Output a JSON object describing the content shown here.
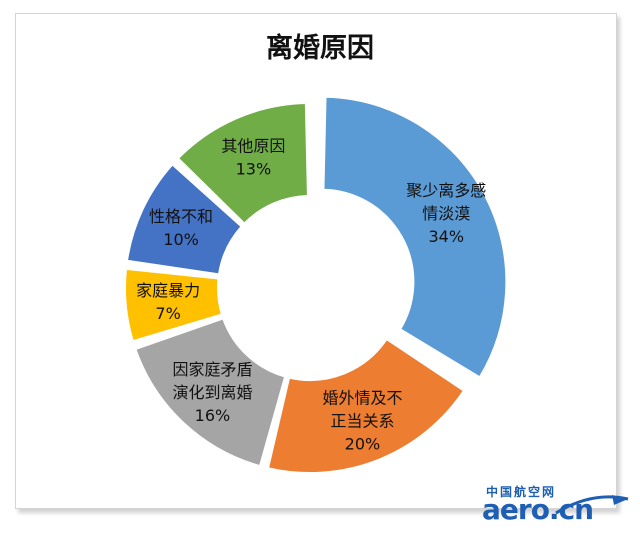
{
  "chart_data": {
    "type": "pie",
    "title": "离婚原因",
    "hole": true,
    "slices": [
      {
        "name": "聚少离多感情淡漠",
        "lines": [
          "聚少离多感",
          "情淡漠"
        ],
        "value": 34,
        "label": "34%",
        "color": "#5b9bd5"
      },
      {
        "name": "婚外情及不正当关系",
        "lines": [
          "婚外情及不",
          "正当关系"
        ],
        "value": 20,
        "label": "20%",
        "color": "#ed7d31"
      },
      {
        "name": "因家庭矛盾演化到离婚",
        "lines": [
          "因家庭矛盾",
          "演化到离婚"
        ],
        "value": 16,
        "label": "16%",
        "color": "#a5a5a5"
      },
      {
        "name": "家庭暴力",
        "lines": [
          "家庭暴力"
        ],
        "value": 7,
        "label": "7%",
        "color": "#ffc000"
      },
      {
        "name": "性格不和",
        "lines": [
          "性格不和"
        ],
        "value": 10,
        "label": "10%",
        "color": "#4472c4"
      },
      {
        "name": "其他原因",
        "lines": [
          "其他原因"
        ],
        "value": 13,
        "label": "13%",
        "color": "#70ad47"
      }
    ]
  },
  "watermark": {
    "cn": "中国航空网",
    "en": "aero.cn"
  }
}
